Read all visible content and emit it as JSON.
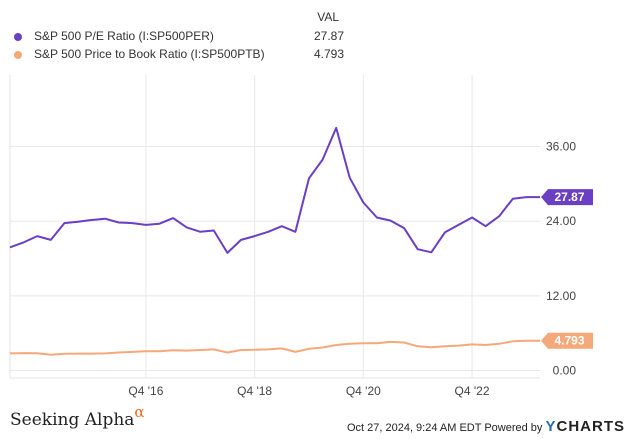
{
  "legend": {
    "value_header": "VAL",
    "items": [
      {
        "name": "S&P 500 P/E Ratio (I:SP500PER)",
        "value": "27.87"
      },
      {
        "name": "S&P 500 Price to Book Ratio (I:SP500PTB)",
        "value": "4.793"
      }
    ]
  },
  "footer": {
    "brand": "Seeking Alpha",
    "brand_mark": "α",
    "timestamp": "Oct 27, 2024, 9:24 AM EDT Powered by",
    "provider_y": "Y",
    "provider": "CHARTS"
  },
  "chart_data": {
    "type": "line",
    "x_ticks": [
      {
        "label": "Q4 '16",
        "x": 2016.75
      },
      {
        "label": "Q4 '18",
        "x": 2018.75
      },
      {
        "label": "Q4 '20",
        "x": 2020.75
      },
      {
        "label": "Q4 '22",
        "x": 2022.75
      }
    ],
    "y_ticks": [
      {
        "label": "0.00",
        "y": 0
      },
      {
        "label": "12.00",
        "y": 12
      },
      {
        "label": "24.00",
        "y": 24
      },
      {
        "label": "36.00",
        "y": 36
      }
    ],
    "xlim": [
      2014.25,
      2024.0
    ],
    "ylim": [
      -1.2,
      47.5
    ],
    "series": [
      {
        "name": "S&P 500 P/E Ratio (I:SP500PER)",
        "color": "#6a3fc4",
        "end_label": "27.87",
        "x": [
          2014.25,
          2014.5,
          2014.75,
          2015.0,
          2015.25,
          2015.5,
          2015.75,
          2016.0,
          2016.25,
          2016.5,
          2016.75,
          2017.0,
          2017.25,
          2017.5,
          2017.75,
          2018.0,
          2018.25,
          2018.5,
          2018.75,
          2019.0,
          2019.25,
          2019.5,
          2019.75,
          2020.0,
          2020.25,
          2020.5,
          2020.75,
          2021.0,
          2021.25,
          2021.5,
          2021.75,
          2022.0,
          2022.25,
          2022.5,
          2022.75,
          2023.0,
          2023.25,
          2023.5,
          2023.75,
          2024.0
        ],
        "values": [
          19.8,
          20.6,
          21.6,
          21.0,
          23.7,
          23.9,
          24.2,
          24.4,
          23.8,
          23.7,
          23.4,
          23.6,
          24.5,
          23.0,
          22.3,
          22.5,
          18.9,
          21.0,
          21.6,
          22.3,
          23.2,
          22.3,
          30.9,
          33.9,
          39.0,
          31.0,
          27.0,
          24.6,
          24.1,
          22.9,
          19.5,
          19.0,
          22.2,
          23.4,
          24.6,
          23.2,
          24.8,
          27.6,
          27.87,
          27.87
        ]
      },
      {
        "name": "S&P 500 Price to Book Ratio (I:SP500PTB)",
        "color": "#f5a97a",
        "end_label": "4.793",
        "x": [
          2014.25,
          2014.5,
          2014.75,
          2015.0,
          2015.25,
          2015.5,
          2015.75,
          2016.0,
          2016.25,
          2016.5,
          2016.75,
          2017.0,
          2017.25,
          2017.5,
          2017.75,
          2018.0,
          2018.25,
          2018.5,
          2018.75,
          2019.0,
          2019.25,
          2019.5,
          2019.75,
          2020.0,
          2020.25,
          2020.5,
          2020.75,
          2021.0,
          2021.25,
          2021.5,
          2021.75,
          2022.0,
          2022.25,
          2022.5,
          2022.75,
          2023.0,
          2023.25,
          2023.5,
          2023.75,
          2024.0
        ],
        "values": [
          2.75,
          2.8,
          2.78,
          2.55,
          2.7,
          2.72,
          2.72,
          2.75,
          2.9,
          3.0,
          3.1,
          3.1,
          3.25,
          3.2,
          3.3,
          3.4,
          2.9,
          3.3,
          3.35,
          3.4,
          3.55,
          3.0,
          3.5,
          3.7,
          4.1,
          4.3,
          4.4,
          4.4,
          4.6,
          4.5,
          3.9,
          3.75,
          3.9,
          4.0,
          4.2,
          4.1,
          4.3,
          4.7,
          4.793,
          4.793
        ]
      }
    ]
  }
}
